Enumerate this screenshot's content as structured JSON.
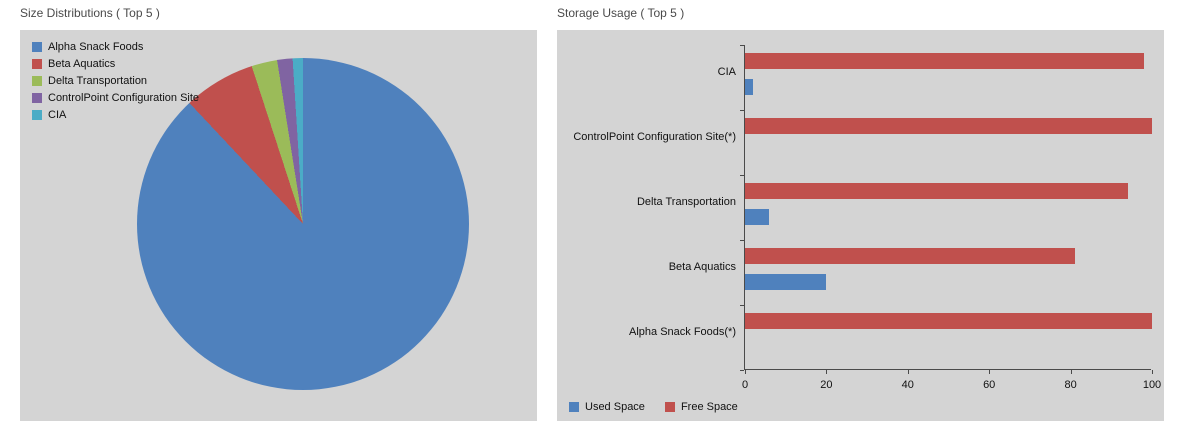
{
  "chart_data": [
    {
      "type": "pie",
      "title": "Size Distributions ( Top 5 )",
      "labels": [
        "Alpha Snack Foods",
        "Beta Aquatics",
        "Delta Transportation",
        "ControlPoint Configuration Site",
        "CIA"
      ],
      "values": [
        88,
        7,
        2.5,
        1.5,
        1
      ],
      "colors": [
        "#4f81bd",
        "#c0504d",
        "#9bbb59",
        "#8064a2",
        "#4bacc6"
      ],
      "legend_position": "top-left"
    },
    {
      "type": "bar",
      "orientation": "horizontal",
      "title": "Storage Usage ( Top 5 )",
      "categories": [
        "CIA",
        "ControlPoint Configuration Site(*)",
        "Delta Transportation",
        "Beta Aquatics",
        "Alpha Snack Foods(*)"
      ],
      "series": [
        {
          "name": "Used Space",
          "color": "#4f81bd",
          "values": [
            2,
            0,
            6,
            20,
            0
          ]
        },
        {
          "name": "Free Space",
          "color": "#c0504d",
          "values": [
            98,
            100,
            94,
            81,
            100
          ]
        }
      ],
      "xlim": [
        0,
        100
      ],
      "xticks": [
        0,
        20,
        40,
        60,
        80,
        100
      ],
      "legend_position": "bottom-left",
      "grid": false
    }
  ]
}
